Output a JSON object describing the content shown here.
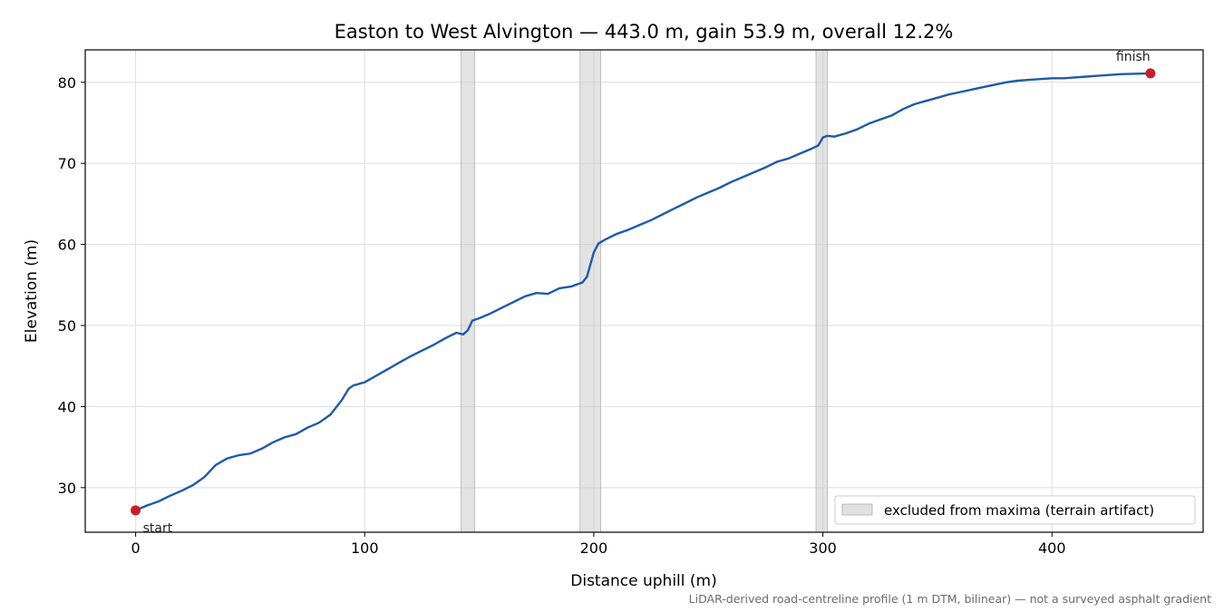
{
  "chart_data": {
    "type": "line",
    "title": "Easton to West Alvington — 443.0 m, gain 53.9 m, overall 12.2%",
    "xlabel": "Distance uphill (m)",
    "ylabel": "Elevation (m)",
    "xlim": [
      -22,
      466
    ],
    "ylim": [
      24.5,
      84
    ],
    "xticks": [
      0,
      100,
      200,
      300,
      400
    ],
    "yticks": [
      30,
      40,
      50,
      60,
      70,
      80
    ],
    "grid": true,
    "line_color": "#1f5aa8",
    "marker_color": "#c81e2a",
    "band_color": "#c8c8c8",
    "series": [
      {
        "x": [
          0,
          5,
          10,
          15,
          20,
          25,
          30,
          35,
          40,
          45,
          50,
          55,
          60,
          65,
          70,
          75,
          80,
          85,
          90,
          93,
          95,
          100,
          105,
          110,
          115,
          120,
          125,
          130,
          135,
          140,
          143,
          145,
          147,
          150,
          155,
          160,
          165,
          170,
          175,
          180,
          185,
          190,
          195,
          197,
          200,
          202,
          205,
          210,
          215,
          220,
          225,
          230,
          235,
          240,
          245,
          250,
          255,
          260,
          265,
          270,
          275,
          280,
          285,
          290,
          295,
          298,
          300,
          302,
          305,
          310,
          315,
          320,
          325,
          330,
          335,
          340,
          345,
          350,
          355,
          360,
          365,
          370,
          375,
          380,
          385,
          390,
          395,
          400,
          405,
          410,
          415,
          420,
          425,
          430,
          435,
          443
        ],
        "y": [
          27.2,
          27.8,
          28.3,
          29.0,
          29.6,
          30.3,
          31.3,
          32.8,
          33.6,
          34.0,
          34.2,
          34.8,
          35.6,
          36.2,
          36.6,
          37.4,
          38.0,
          39.0,
          40.8,
          42.2,
          42.6,
          43.0,
          43.8,
          44.6,
          45.4,
          46.2,
          46.9,
          47.6,
          48.4,
          49.1,
          48.9,
          49.4,
          50.6,
          50.9,
          51.5,
          52.2,
          52.9,
          53.6,
          54.0,
          53.9,
          54.6,
          54.8,
          55.3,
          56.0,
          59.0,
          60.1,
          60.6,
          61.3,
          61.8,
          62.4,
          63.0,
          63.7,
          64.4,
          65.1,
          65.8,
          66.4,
          67.0,
          67.7,
          68.3,
          68.9,
          69.5,
          70.2,
          70.6,
          71.2,
          71.8,
          72.2,
          73.2,
          73.4,
          73.3,
          73.7,
          74.2,
          74.9,
          75.4,
          75.9,
          76.7,
          77.3,
          77.7,
          78.1,
          78.5,
          78.8,
          79.1,
          79.4,
          79.7,
          80.0,
          80.2,
          80.3,
          80.4,
          80.5,
          80.5,
          80.6,
          80.7,
          80.8,
          80.9,
          81.0,
          81.05,
          81.1
        ]
      }
    ],
    "excluded_bands": [
      [
        142,
        148
      ],
      [
        194,
        203
      ],
      [
        297,
        302
      ]
    ],
    "points": [
      {
        "label": "start",
        "x": 0,
        "y": 27.2
      },
      {
        "label": "finish",
        "x": 443,
        "y": 81.1
      }
    ],
    "legend": {
      "label": "excluded from maxima (terrain artifact)",
      "placement": "lower-right"
    },
    "footnote": "LiDAR-derived road-centreline profile (1 m DTM, bilinear) — not a surveyed asphalt gradient"
  }
}
